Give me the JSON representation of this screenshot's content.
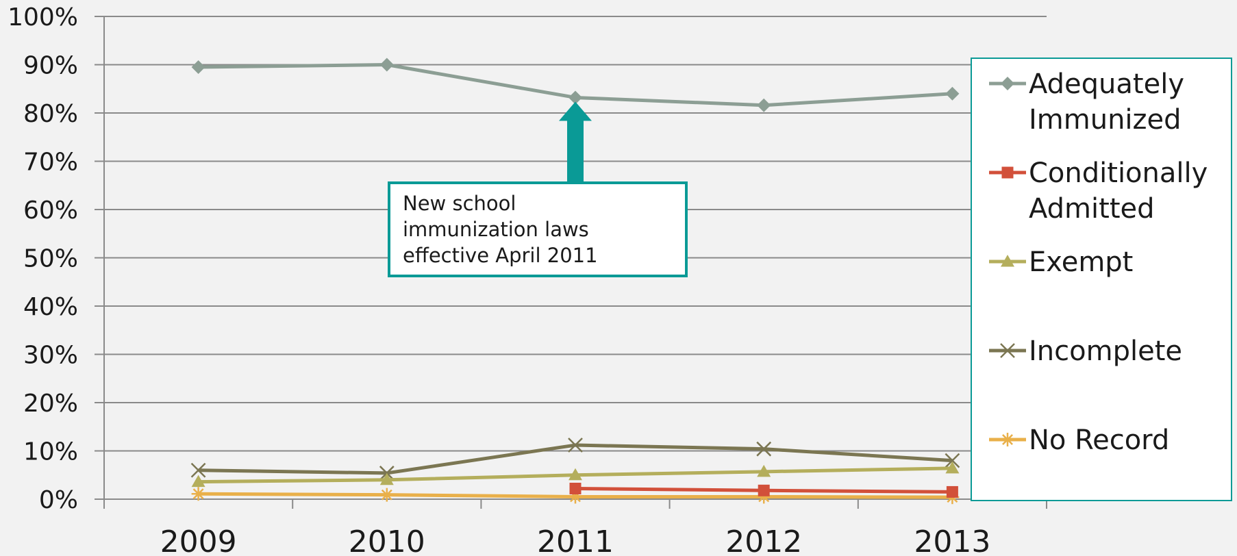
{
  "chart_data": {
    "type": "line",
    "title": "",
    "xlabel": "",
    "ylabel": "",
    "categories": [
      "2009",
      "2010",
      "2011",
      "2012",
      "2013"
    ],
    "y_tick_labels": [
      "0%",
      "10%",
      "20%",
      "30%",
      "40%",
      "50%",
      "60%",
      "70%",
      "80%",
      "90%",
      "100%"
    ],
    "ylim": [
      0,
      100
    ],
    "grid": true,
    "legend_position": "right",
    "series": [
      {
        "name": "Adequately Immunized",
        "name_lines": [
          "Adequately",
          "Immunized"
        ],
        "color": "#8c9e94",
        "marker": "diamond",
        "values": [
          89.5,
          90.0,
          83.2,
          81.6,
          84.0
        ]
      },
      {
        "name": "Conditionally Admitted",
        "name_lines": [
          "Conditionally",
          "Admitted"
        ],
        "color": "#d2503a",
        "marker": "square",
        "values": [
          null,
          null,
          2.2,
          1.8,
          1.5
        ]
      },
      {
        "name": "Exempt",
        "name_lines": [
          "Exempt"
        ],
        "color": "#b4ae5c",
        "marker": "triangle",
        "values": [
          3.6,
          4.0,
          5.0,
          5.7,
          6.4
        ]
      },
      {
        "name": "Incomplete",
        "name_lines": [
          "Incomplete"
        ],
        "color": "#7b7652",
        "marker": "x",
        "values": [
          6.0,
          5.4,
          11.2,
          10.4,
          8.0
        ]
      },
      {
        "name": "No Record",
        "name_lines": [
          "No Record"
        ],
        "color": "#e9b04a",
        "marker": "star",
        "values": [
          1.1,
          0.9,
          0.5,
          0.5,
          0.4
        ]
      }
    ],
    "annotation": {
      "text_lines": [
        "New school",
        "immunization laws",
        "effective April 2011"
      ],
      "points_to_category": "2011",
      "color": "#0a9a96"
    }
  }
}
